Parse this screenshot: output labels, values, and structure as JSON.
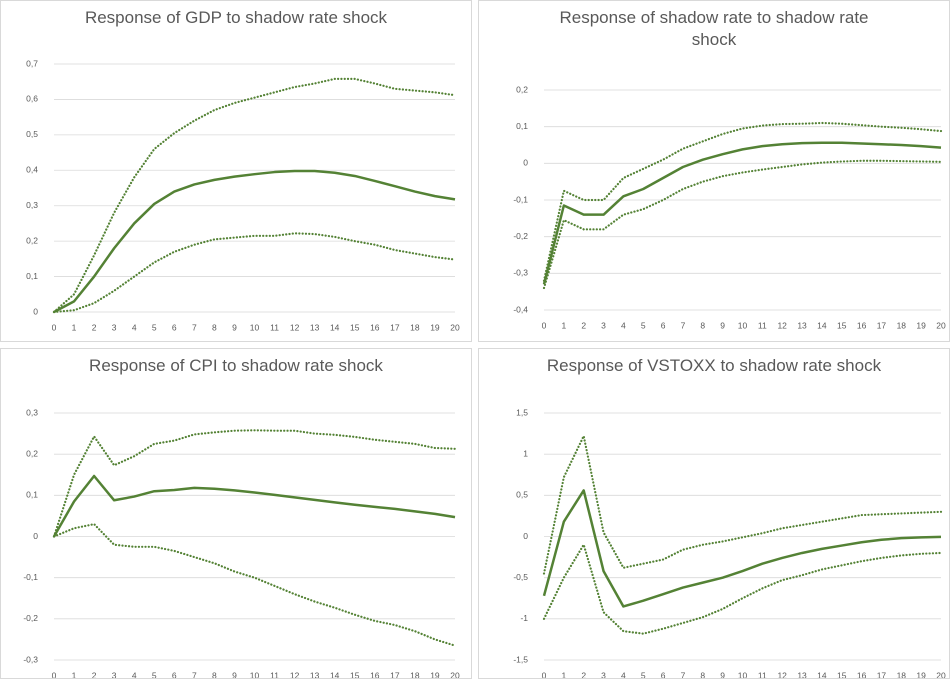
{
  "chart_data": [
    {
      "type": "line",
      "title": "Response of GDP to shadow rate shock",
      "x": [
        0,
        1,
        2,
        3,
        4,
        5,
        6,
        7,
        8,
        9,
        10,
        11,
        12,
        13,
        14,
        15,
        16,
        17,
        18,
        19,
        20
      ],
      "xticks": [
        0,
        1,
        2,
        3,
        4,
        5,
        6,
        7,
        8,
        9,
        10,
        11,
        12,
        13,
        14,
        15,
        16,
        17,
        18,
        19,
        20
      ],
      "xlim": [
        0,
        20
      ],
      "ylim": [
        0,
        0.7
      ],
      "yticks": [
        0,
        {
          "value": 0.1,
          "label": "0,1"
        },
        {
          "value": 0.2,
          "label": "0,2"
        },
        {
          "value": 0.3,
          "label": "0,3"
        },
        {
          "value": 0.4,
          "label": "0,4"
        },
        {
          "value": 0.5,
          "label": "0,5"
        },
        {
          "value": 0.6,
          "label": "0,6"
        },
        {
          "value": 0.7,
          "label": "0,7"
        }
      ],
      "grid": true,
      "series": [
        {
          "color": "#548235",
          "style": "solid",
          "values": [
            0,
            0.03,
            0.1,
            0.18,
            0.25,
            0.305,
            0.34,
            0.36,
            0.373,
            0.382,
            0.389,
            0.395,
            0.398,
            0.398,
            0.393,
            0.384,
            0.37,
            0.355,
            0.34,
            0.327,
            0.318
          ]
        },
        {
          "color": "#548235",
          "style": "dotted",
          "values": [
            0,
            0.05,
            0.16,
            0.28,
            0.38,
            0.46,
            0.505,
            0.54,
            0.57,
            0.59,
            0.605,
            0.62,
            0.635,
            0.645,
            0.658,
            0.658,
            0.645,
            0.63,
            0.625,
            0.62,
            0.612
          ]
        },
        {
          "color": "#548235",
          "style": "dotted",
          "values": [
            0,
            0.005,
            0.025,
            0.06,
            0.1,
            0.14,
            0.17,
            0.19,
            0.205,
            0.21,
            0.215,
            0.215,
            0.222,
            0.22,
            0.212,
            0.2,
            0.19,
            0.175,
            0.165,
            0.155,
            0.148
          ]
        }
      ]
    },
    {
      "type": "line",
      "title": "Response of shadow rate to shadow rate shock",
      "x": [
        0,
        1,
        2,
        3,
        4,
        5,
        6,
        7,
        8,
        9,
        10,
        11,
        12,
        13,
        14,
        15,
        16,
        17,
        18,
        19,
        20
      ],
      "xticks": [
        0,
        1,
        2,
        3,
        4,
        5,
        6,
        7,
        8,
        9,
        10,
        11,
        12,
        13,
        14,
        15,
        16,
        17,
        18,
        19,
        20
      ],
      "xlim": [
        0,
        20
      ],
      "ylim": [
        -0.4,
        0.2
      ],
      "yticks": [
        {
          "value": -0.4,
          "label": "-0,4"
        },
        {
          "value": -0.3,
          "label": "-0,3"
        },
        {
          "value": -0.2,
          "label": "-0,2"
        },
        {
          "value": -0.1,
          "label": "-0,1"
        },
        0,
        {
          "value": 0.1,
          "label": "0,1"
        },
        {
          "value": 0.2,
          "label": "0,2"
        }
      ],
      "grid": true,
      "series": [
        {
          "color": "#548235",
          "style": "solid",
          "values": [
            -0.33,
            -0.115,
            -0.14,
            -0.14,
            -0.09,
            -0.07,
            -0.04,
            -0.01,
            0.01,
            0.025,
            0.038,
            0.047,
            0.052,
            0.055,
            0.056,
            0.056,
            0.054,
            0.052,
            0.05,
            0.047,
            0.043
          ]
        },
        {
          "color": "#548235",
          "style": "dotted",
          "values": [
            -0.32,
            -0.075,
            -0.1,
            -0.1,
            -0.04,
            -0.015,
            0.01,
            0.04,
            0.06,
            0.08,
            0.095,
            0.103,
            0.107,
            0.108,
            0.11,
            0.108,
            0.104,
            0.1,
            0.097,
            0.093,
            0.088
          ]
        },
        {
          "color": "#548235",
          "style": "dotted",
          "values": [
            -0.34,
            -0.155,
            -0.18,
            -0.18,
            -0.14,
            -0.125,
            -0.1,
            -0.07,
            -0.05,
            -0.035,
            -0.025,
            -0.017,
            -0.01,
            -0.003,
            0.002,
            0.005,
            0.007,
            0.007,
            0.006,
            0.005,
            0.004
          ]
        }
      ]
    },
    {
      "type": "line",
      "title": "Response of CPI to shadow rate shock",
      "x": [
        0,
        1,
        2,
        3,
        4,
        5,
        6,
        7,
        8,
        9,
        10,
        11,
        12,
        13,
        14,
        15,
        16,
        17,
        18,
        19,
        20
      ],
      "xticks": [
        0,
        1,
        2,
        3,
        4,
        5,
        6,
        7,
        8,
        9,
        10,
        11,
        12,
        13,
        14,
        15,
        16,
        17,
        18,
        19,
        20
      ],
      "xlim": [
        0,
        20
      ],
      "ylim": [
        -0.3,
        0.3
      ],
      "yticks": [
        {
          "value": -0.3,
          "label": "-0,3"
        },
        {
          "value": -0.2,
          "label": "-0,2"
        },
        {
          "value": -0.1,
          "label": "-0,1"
        },
        0,
        {
          "value": 0.1,
          "label": "0,1"
        },
        {
          "value": 0.2,
          "label": "0,2"
        },
        {
          "value": 0.3,
          "label": "0,3"
        }
      ],
      "grid": true,
      "series": [
        {
          "color": "#548235",
          "style": "solid",
          "values": [
            0,
            0.085,
            0.147,
            0.088,
            0.097,
            0.11,
            0.113,
            0.118,
            0.116,
            0.112,
            0.107,
            0.101,
            0.095,
            0.089,
            0.083,
            0.077,
            0.072,
            0.067,
            0.061,
            0.055,
            0.047
          ]
        },
        {
          "color": "#548235",
          "style": "dotted",
          "values": [
            0,
            0.15,
            0.243,
            0.173,
            0.195,
            0.225,
            0.233,
            0.248,
            0.253,
            0.257,
            0.258,
            0.257,
            0.257,
            0.25,
            0.247,
            0.242,
            0.235,
            0.23,
            0.225,
            0.215,
            0.213
          ]
        },
        {
          "color": "#548235",
          "style": "dotted",
          "values": [
            0,
            0.02,
            0.03,
            -0.02,
            -0.025,
            -0.025,
            -0.035,
            -0.05,
            -0.065,
            -0.085,
            -0.1,
            -0.12,
            -0.14,
            -0.158,
            -0.173,
            -0.19,
            -0.205,
            -0.215,
            -0.23,
            -0.25,
            -0.265
          ]
        }
      ]
    },
    {
      "type": "line",
      "title": "Response of VSTOXX to shadow rate shock",
      "x": [
        0,
        1,
        2,
        3,
        4,
        5,
        6,
        7,
        8,
        9,
        10,
        11,
        12,
        13,
        14,
        15,
        16,
        17,
        18,
        19,
        20
      ],
      "xticks": [
        0,
        1,
        2,
        3,
        4,
        5,
        6,
        7,
        8,
        9,
        10,
        11,
        12,
        13,
        14,
        15,
        16,
        17,
        18,
        19,
        20
      ],
      "xlim": [
        0,
        20
      ],
      "ylim": [
        -1.5,
        1.5
      ],
      "yticks": [
        {
          "value": -1.5,
          "label": "-1,5"
        },
        -1,
        {
          "value": -0.5,
          "label": "-0,5"
        },
        0,
        {
          "value": 0.5,
          "label": "0,5"
        },
        1,
        {
          "value": 1.5,
          "label": "1,5"
        }
      ],
      "grid": true,
      "series": [
        {
          "color": "#548235",
          "style": "solid",
          "values": [
            -0.72,
            0.18,
            0.56,
            -0.42,
            -0.85,
            -0.78,
            -0.7,
            -0.62,
            -0.56,
            -0.5,
            -0.42,
            -0.33,
            -0.26,
            -0.2,
            -0.15,
            -0.11,
            -0.07,
            -0.04,
            -0.02,
            -0.01,
            -0.005
          ]
        },
        {
          "color": "#548235",
          "style": "dotted",
          "values": [
            -0.45,
            0.72,
            1.22,
            0.05,
            -0.38,
            -0.33,
            -0.28,
            -0.16,
            -0.1,
            -0.06,
            -0.01,
            0.04,
            0.1,
            0.14,
            0.18,
            0.22,
            0.26,
            0.27,
            0.28,
            0.29,
            0.3
          ]
        },
        {
          "color": "#548235",
          "style": "dotted",
          "values": [
            -1.0,
            -0.5,
            -0.1,
            -0.92,
            -1.15,
            -1.18,
            -1.12,
            -1.05,
            -0.98,
            -0.88,
            -0.75,
            -0.63,
            -0.53,
            -0.47,
            -0.4,
            -0.35,
            -0.3,
            -0.26,
            -0.23,
            -0.21,
            -0.2
          ]
        }
      ]
    }
  ]
}
